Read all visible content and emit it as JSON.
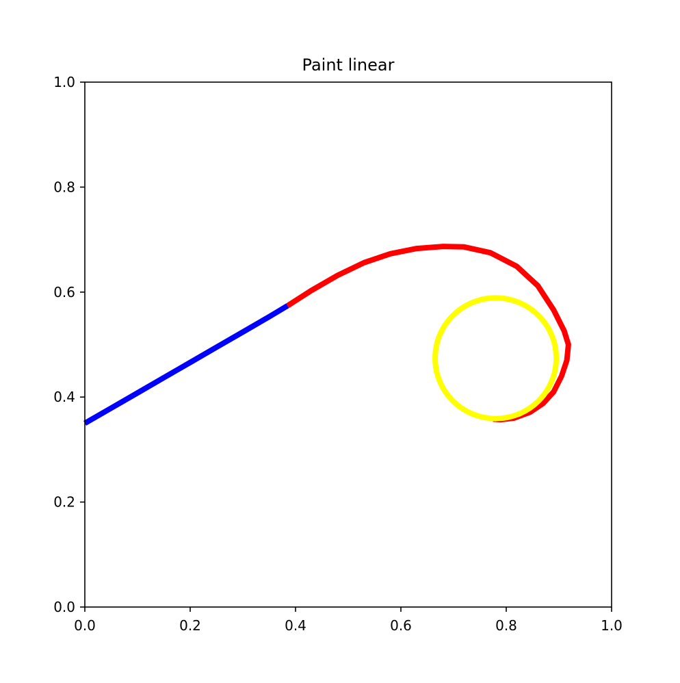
{
  "chart_data": {
    "type": "line",
    "title": "Paint linear",
    "xlabel": "",
    "ylabel": "",
    "xlim": [
      0.0,
      1.0
    ],
    "ylim": [
      0.0,
      1.0
    ],
    "grid": false,
    "x_ticks": [
      "0.0",
      "0.2",
      "0.4",
      "0.6",
      "0.8",
      "1.0"
    ],
    "y_ticks": [
      "0.0",
      "0.2",
      "0.4",
      "0.6",
      "0.8",
      "1.0"
    ],
    "series": [
      {
        "color": "#0000ff",
        "x": [
          0.0,
          0.05,
          0.1,
          0.15,
          0.2,
          0.25,
          0.3,
          0.35,
          0.385
        ],
        "y": [
          0.35,
          0.379,
          0.408,
          0.437,
          0.466,
          0.495,
          0.524,
          0.553,
          0.574
        ]
      },
      {
        "color": "#ff0000",
        "x": [
          0.385,
          0.43,
          0.48,
          0.53,
          0.58,
          0.63,
          0.68,
          0.72,
          0.77,
          0.82,
          0.86,
          0.89,
          0.91,
          0.918,
          0.915,
          0.905,
          0.89,
          0.87,
          0.845,
          0.815,
          0.79,
          0.775
        ],
        "y": [
          0.574,
          0.603,
          0.632,
          0.656,
          0.673,
          0.683,
          0.687,
          0.686,
          0.675,
          0.649,
          0.612,
          0.566,
          0.526,
          0.5,
          0.47,
          0.44,
          0.41,
          0.388,
          0.371,
          0.36,
          0.357,
          0.358
        ]
      },
      {
        "color": "#ffff00",
        "shape": "circle",
        "center": [
          0.78,
          0.474
        ],
        "radius": [
          0.115,
          0.115
        ]
      }
    ]
  }
}
